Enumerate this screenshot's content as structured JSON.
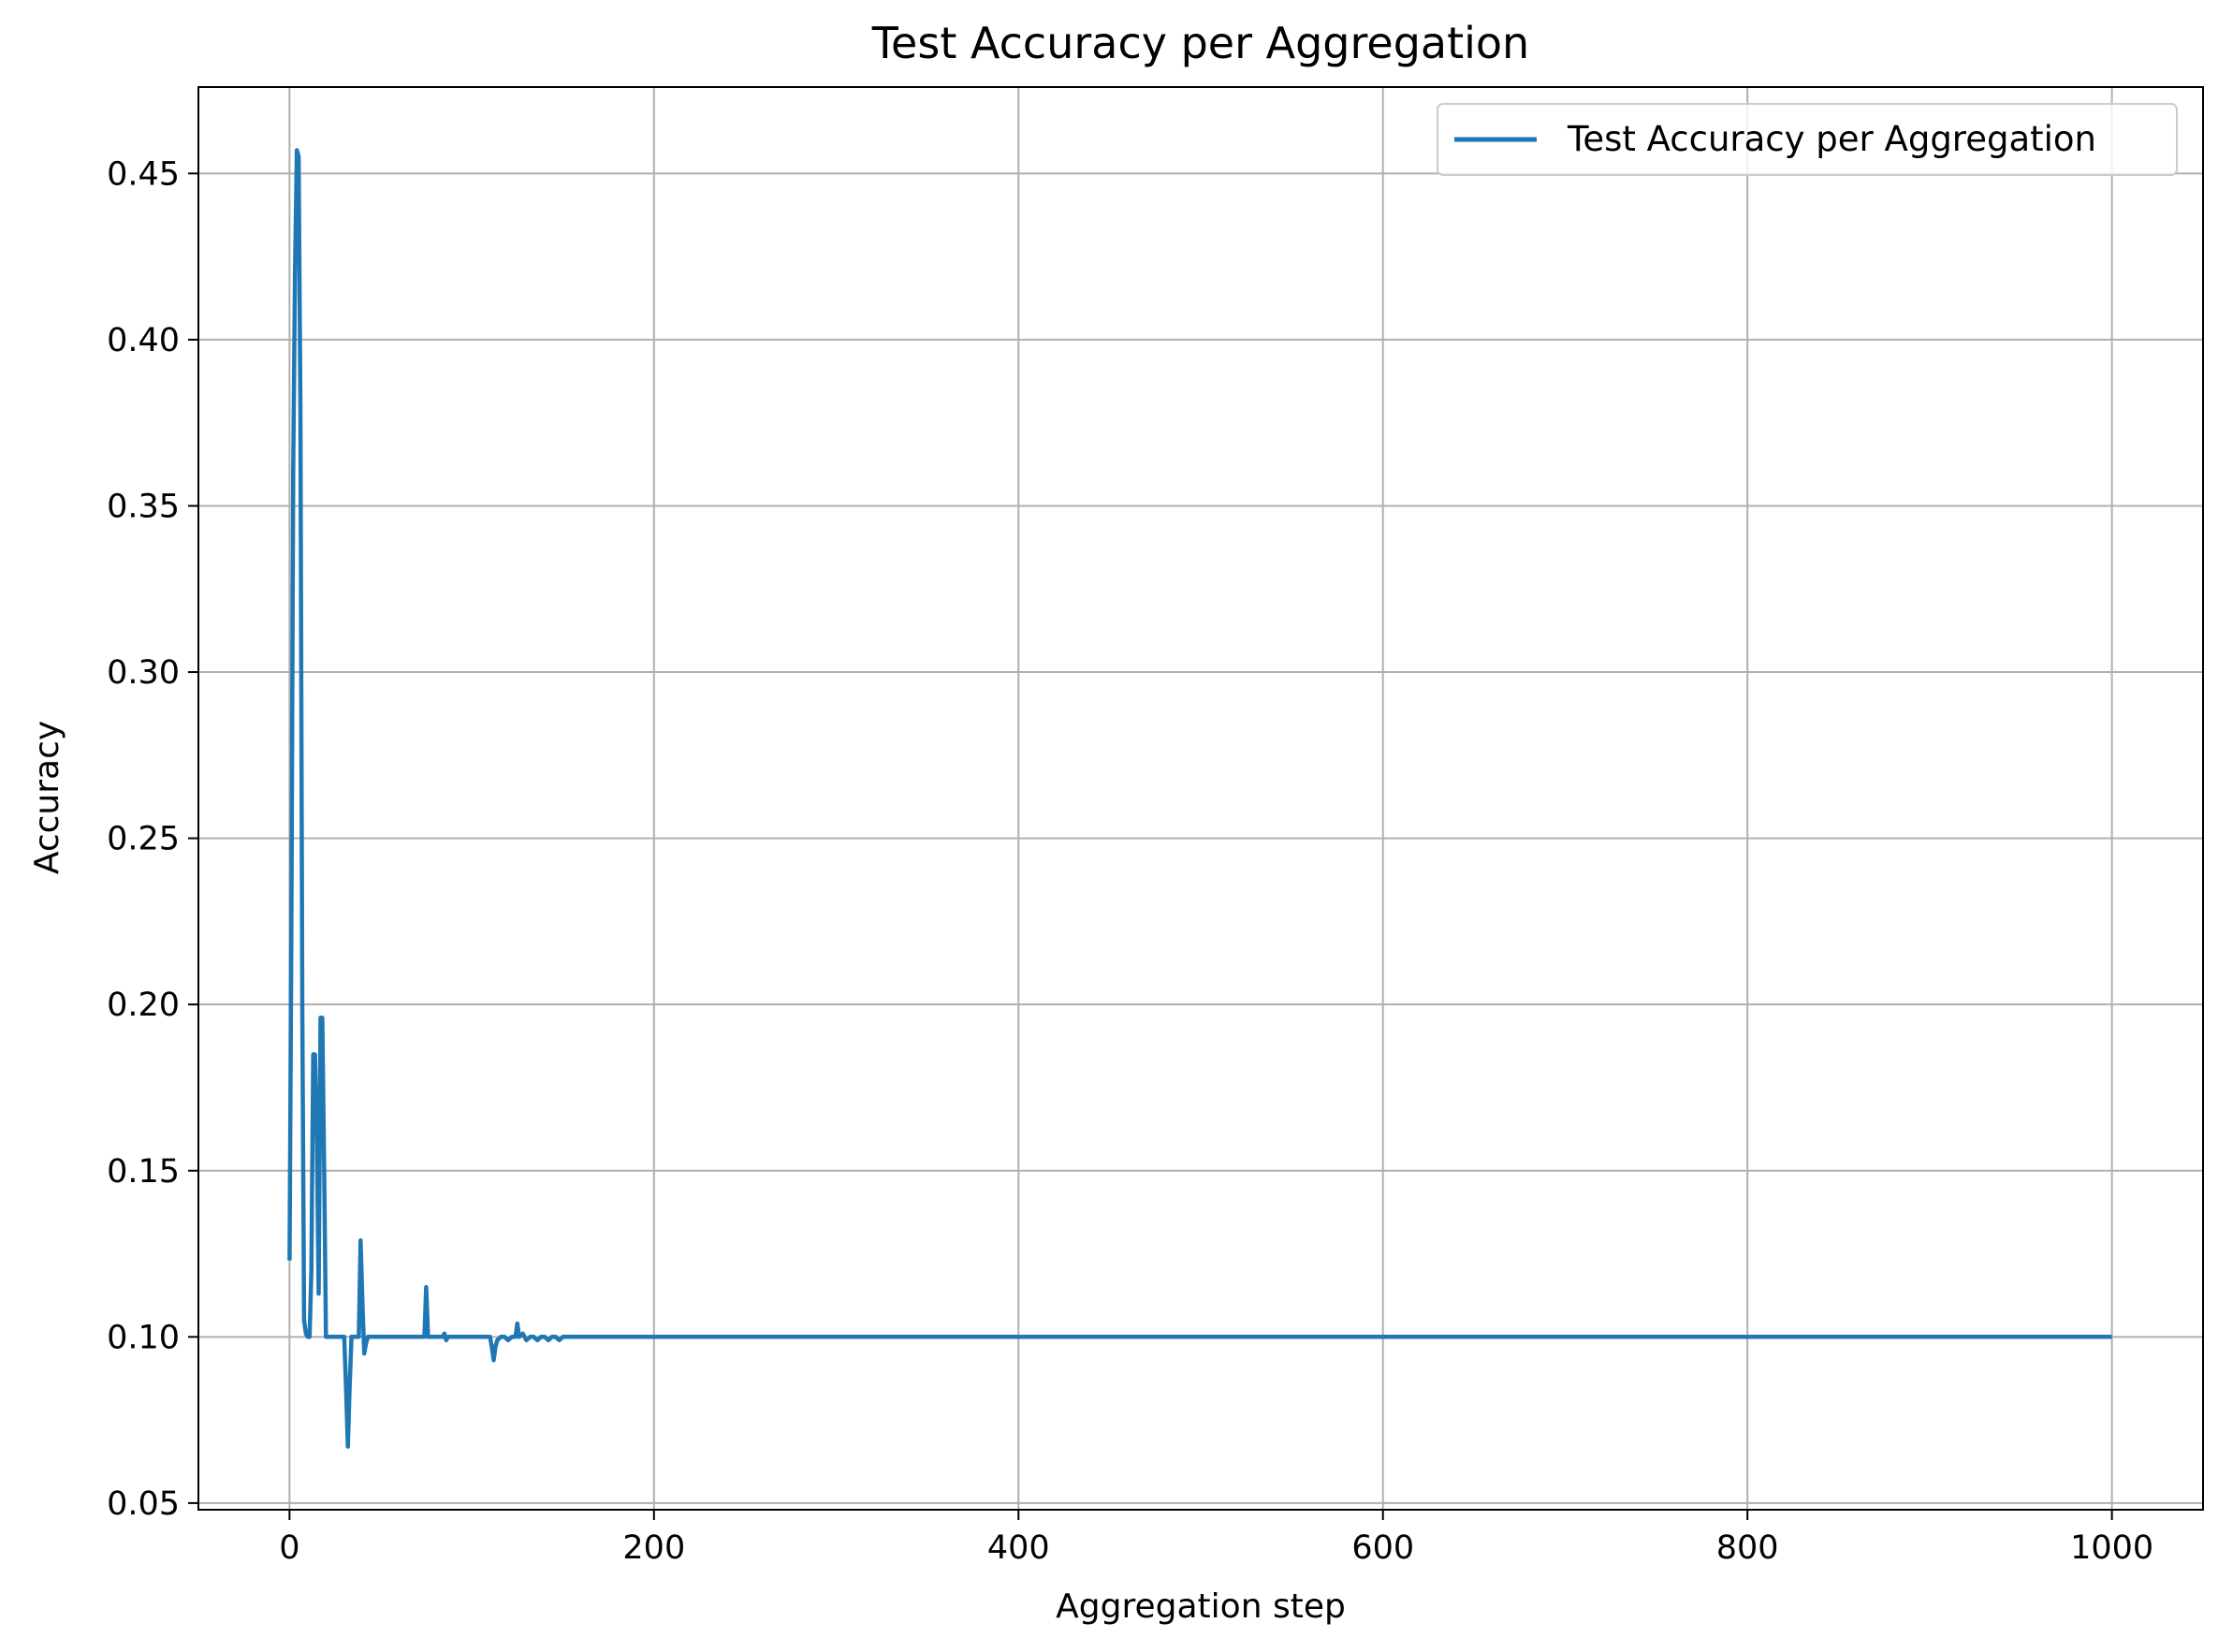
{
  "colors": {
    "line": "#1f77b4",
    "grid": "#b0b0b0",
    "axes": "#000000",
    "background": "#ffffff"
  },
  "chart_data": {
    "type": "line",
    "title": "Test Accuracy per Aggregation",
    "xlabel": "Aggregation step",
    "ylabel": "Accuracy",
    "xlim": [
      -50,
      1050
    ],
    "ylim": [
      0.048,
      0.476
    ],
    "xticks": [
      0,
      200,
      400,
      600,
      800,
      1000
    ],
    "xtick_labels": [
      "0",
      "200",
      "400",
      "600",
      "800",
      "1000"
    ],
    "yticks": [
      0.05,
      0.1,
      0.15,
      0.2,
      0.25,
      0.3,
      0.35,
      0.4,
      0.45
    ],
    "ytick_labels": [
      "0.05",
      "0.10",
      "0.15",
      "0.20",
      "0.25",
      "0.30",
      "0.35",
      "0.40",
      "0.45"
    ],
    "grid": true,
    "legend_position": "top-right",
    "series": [
      {
        "name": "Test Accuracy per Aggregation",
        "x": [
          0,
          1,
          2,
          3,
          4,
          5,
          6,
          7,
          8,
          9,
          10,
          11,
          12,
          13,
          14,
          15,
          16,
          17,
          18,
          19,
          20,
          21,
          22,
          23,
          24,
          25,
          26,
          30,
          31,
          32,
          33,
          34,
          35,
          36,
          37,
          38,
          39,
          40,
          41,
          42,
          43,
          44,
          74,
          75,
          76,
          77,
          78,
          84,
          85,
          86,
          87,
          88,
          110,
          111,
          112,
          113,
          114,
          116,
          118,
          120,
          122,
          124,
          125,
          126,
          128,
          130,
          132,
          134,
          136,
          138,
          140,
          142,
          144,
          146,
          148,
          150,
          152,
          1000
        ],
        "values": [
          0.123,
          0.22,
          0.36,
          0.42,
          0.457,
          0.455,
          0.38,
          0.2,
          0.105,
          0.101,
          0.1,
          0.1,
          0.12,
          0.185,
          0.185,
          0.16,
          0.113,
          0.196,
          0.196,
          0.15,
          0.1,
          0.1,
          0.1,
          0.1,
          0.1,
          0.1,
          0.1,
          0.1,
          0.085,
          0.067,
          0.085,
          0.1,
          0.1,
          0.1,
          0.1,
          0.1,
          0.129,
          0.11,
          0.095,
          0.098,
          0.1,
          0.1,
          0.1,
          0.115,
          0.1,
          0.1,
          0.1,
          0.1,
          0.101,
          0.099,
          0.1,
          0.1,
          0.1,
          0.097,
          0.093,
          0.097,
          0.099,
          0.1,
          0.1,
          0.099,
          0.1,
          0.1,
          0.104,
          0.1,
          0.101,
          0.099,
          0.1,
          0.1,
          0.099,
          0.1,
          0.1,
          0.099,
          0.1,
          0.1,
          0.099,
          0.1,
          0.1,
          0.1
        ]
      }
    ]
  }
}
